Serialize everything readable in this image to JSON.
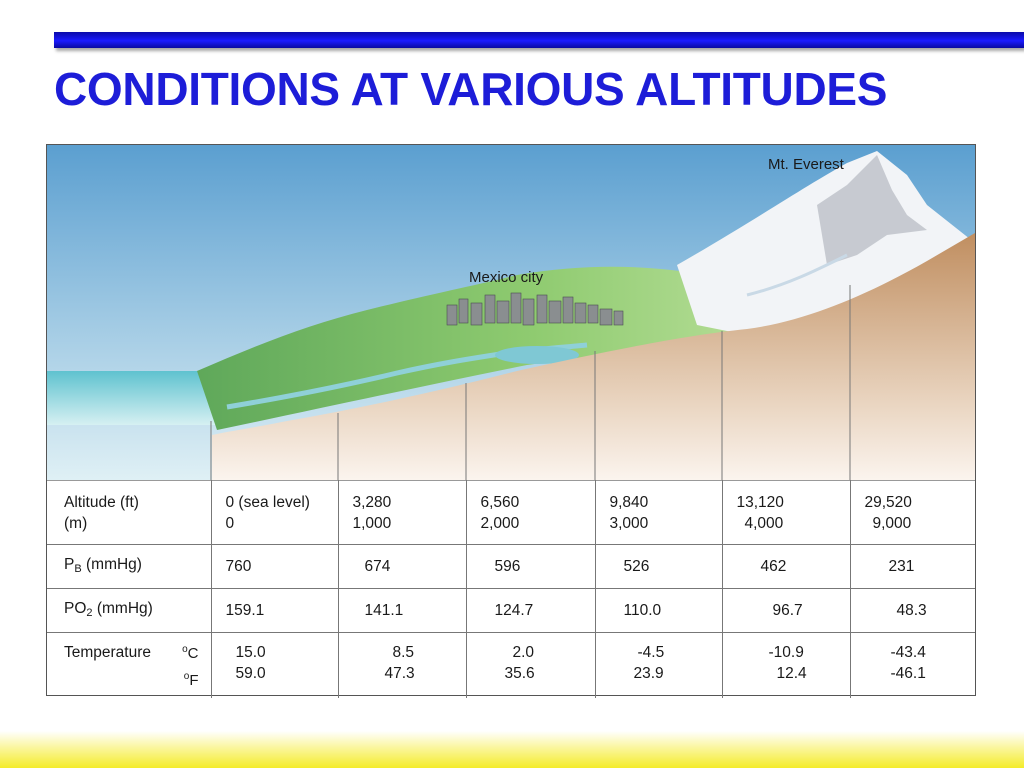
{
  "title": "CONDITIONS AT VARIOUS ALTITUDES",
  "scene": {
    "mexico_label": "Mexico city",
    "everest_label": "Mt. Everest"
  },
  "table": {
    "altitude": {
      "label_ft": "Altitude (ft)",
      "label_m": "(m)",
      "ft": [
        "0 (sea level)",
        "3,280",
        "6,560",
        "9,840",
        "13,120",
        "29,520"
      ],
      "m": [
        "0",
        "1,000",
        "2,000",
        "3,000",
        "4,000",
        "9,000"
      ]
    },
    "pb": {
      "label_main": "P",
      "label_sub": "B",
      "label_unit": " (mmHg)",
      "values": [
        "760",
        "674",
        "596",
        "526",
        "462",
        "231"
      ]
    },
    "po2": {
      "label_main": "PO",
      "label_sub": "2",
      "label_unit": " (mmHg)",
      "values": [
        "159.1",
        "141.1",
        "124.7",
        "110.0",
        "96.7",
        "48.3"
      ]
    },
    "temperature": {
      "label": "Temperature",
      "unit_c_deg": "o",
      "unit_c": "C",
      "unit_f_deg": "o",
      "unit_f": "F",
      "c": [
        "15.0",
        "8.5",
        "2.0",
        "-4.5",
        "-10.9",
        "-43.4"
      ],
      "f": [
        "59.0",
        "47.3",
        "35.6",
        "23.9",
        "12.4",
        "-46.1"
      ]
    }
  },
  "colors": {
    "title": "#1d1dd8",
    "sky_top": "#5b9fd0",
    "grass": "#7dc06a",
    "ground": "#c99c72",
    "sea": "#7ccdd6",
    "snow": "#f4f6f8"
  }
}
